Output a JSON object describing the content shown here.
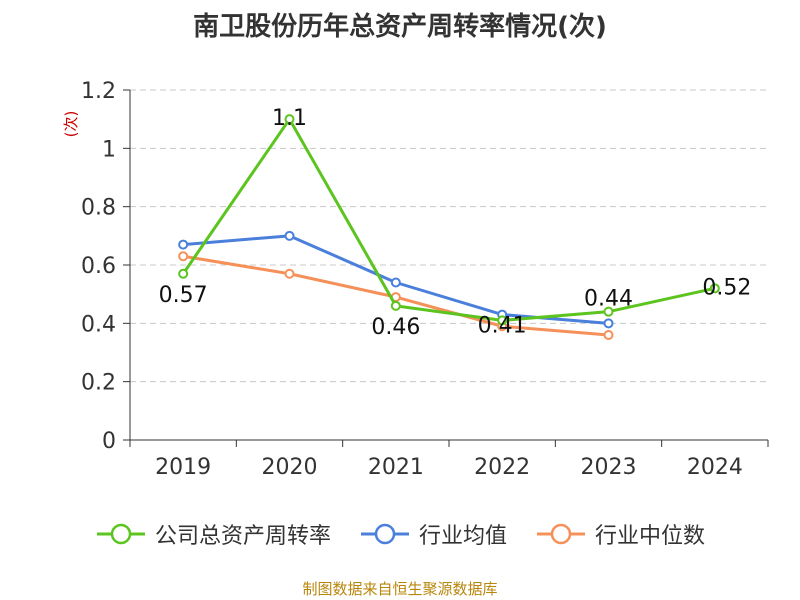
{
  "title": "南卫股份历年总资产周转率情况(次)",
  "source": "制图数据来自恒生聚源数据库",
  "chart_data": {
    "type": "line",
    "title": "南卫股份历年总资产周转率情况(次)",
    "ylabel": "(次)",
    "xlabel": "",
    "categories": [
      "2019",
      "2020",
      "2021",
      "2022",
      "2023",
      "2024"
    ],
    "y_ticks": [
      "0",
      "0.2",
      "0.4",
      "0.6",
      "0.8",
      "1",
      "1.2"
    ],
    "ylim": [
      0,
      1.2
    ],
    "grid": true,
    "legend_position": "bottom",
    "series": [
      {
        "name": "公司总资产周转率",
        "color": "#5cc41f",
        "values": [
          0.57,
          1.1,
          0.46,
          0.41,
          0.44,
          0.52
        ],
        "labels": [
          "0.57",
          "1.1",
          "0.46",
          "0.41",
          "0.44",
          "0.52"
        ],
        "show_labels": true
      },
      {
        "name": "行业均值",
        "color": "#4a7fdc",
        "values": [
          0.67,
          0.7,
          0.54,
          0.43,
          0.4,
          null
        ],
        "show_labels": false
      },
      {
        "name": "行业中位数",
        "color": "#f59058",
        "values": [
          0.63,
          0.57,
          0.49,
          0.39,
          0.36,
          null
        ],
        "show_labels": false
      }
    ]
  }
}
